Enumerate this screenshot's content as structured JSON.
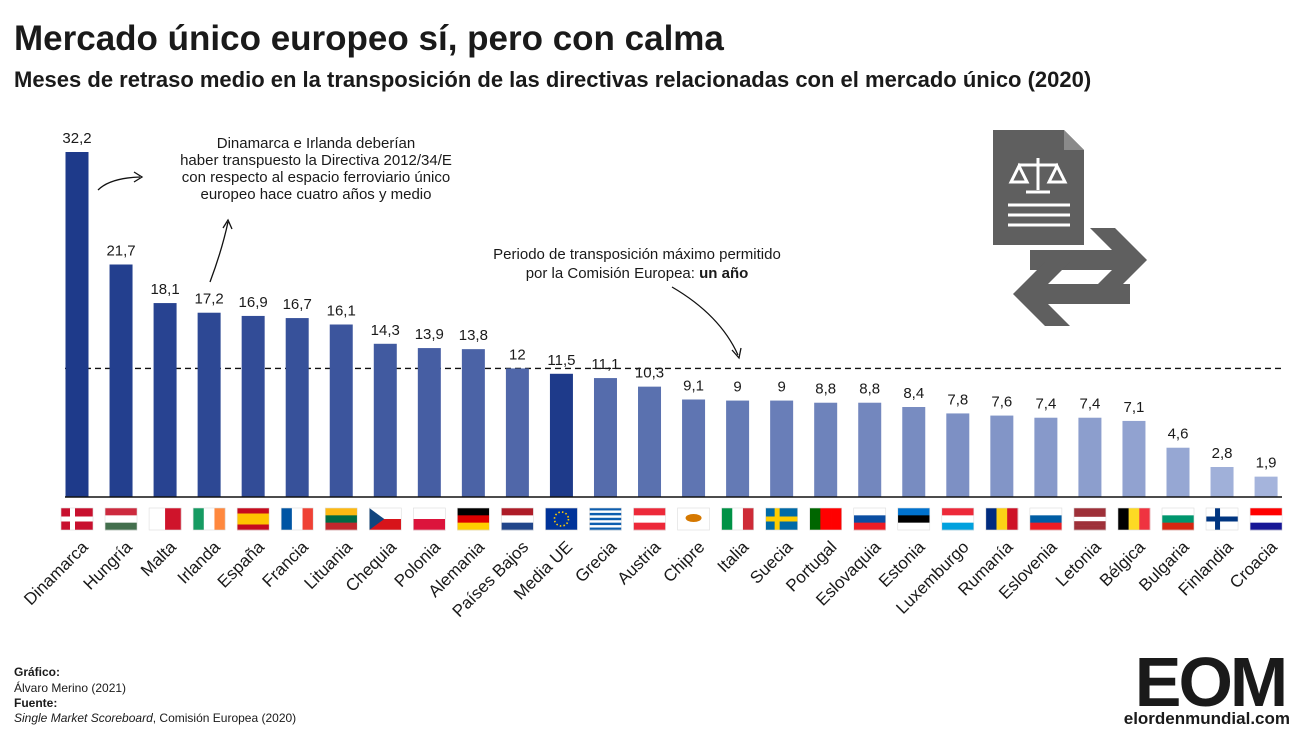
{
  "chart_data": {
    "type": "bar",
    "title": "Mercado único europeo sí, pero con calma",
    "subtitle": "Meses de retraso medio en la transposición de las directivas relacionadas con el mercado único (2020)",
    "categories": [
      "Dinamarca",
      "Hungría",
      "Malta",
      "Irlanda",
      "España",
      "Francia",
      "Lituania",
      "Chequia",
      "Polonia",
      "Alemania",
      "Países Bajos",
      "Media UE",
      "Grecia",
      "Austria",
      "Chipre",
      "Italia",
      "Suecia",
      "Portugal",
      "Eslovaquia",
      "Estonia",
      "Luxemburgo",
      "Rumanía",
      "Eslovenia",
      "Letonia",
      "Bélgica",
      "Bulgaria",
      "Finlandia",
      "Croacia"
    ],
    "values": [
      32.2,
      21.7,
      18.1,
      17.2,
      16.9,
      16.7,
      16.1,
      14.3,
      13.9,
      13.8,
      12,
      11.5,
      11.1,
      10.3,
      9.1,
      9,
      9,
      8.8,
      8.8,
      8.4,
      7.8,
      7.6,
      7.4,
      7.4,
      7.1,
      4.6,
      2.8,
      1.9
    ],
    "value_labels": [
      "32,2",
      "21,7",
      "18,1",
      "17,2",
      "16,9",
      "16,7",
      "16,1",
      "14,3",
      "13,9",
      "13,8",
      "12",
      "11,5",
      "11,1",
      "10,3",
      "9,1",
      "9",
      "9",
      "8,8",
      "8,8",
      "8,4",
      "7,8",
      "7,6",
      "7,4",
      "7,4",
      "7,1",
      "4,6",
      "2,8",
      "1,9"
    ],
    "colors": [
      "#1e3a8a",
      "#233f8e",
      "#284391",
      "#2d4894",
      "#324c97",
      "#37519a",
      "#3c559d",
      "#415aa0",
      "#465ea3",
      "#4b63a6",
      "#5067a9",
      "#1e3a8a",
      "#556cac",
      "#5a71af",
      "#5f75b2",
      "#647ab5",
      "#697eb8",
      "#6e83bb",
      "#7387be",
      "#788cc1",
      "#7d90c4",
      "#8295c7",
      "#8799ca",
      "#8c9ecd",
      "#91a2d0",
      "#96a7d3",
      "#a0b0d9",
      "#a5b4dc"
    ],
    "reference_line": 12,
    "annotations": [
      {
        "lines": [
          "Dinamarca e Irlanda deberían",
          "haber transpuesto la Directiva 2012/34/E",
          "con respecto al espacio ferroviario único",
          "europeo hace cuatro años y medio"
        ]
      },
      {
        "lines": [
          "Periodo de transposición máximo permitido",
          "por la Comisión Europea: "
        ],
        "bold": "un año"
      }
    ],
    "credits": {
      "graphic_label": "Gráfico:",
      "graphic": "Álvaro Merino (2021)",
      "source_label": "Fuente:",
      "source_italic": "Single Market Scoreboard",
      "source": ", Comisión Europea (2020)"
    },
    "logo": "EOM",
    "website": "elordenmundial.com"
  }
}
